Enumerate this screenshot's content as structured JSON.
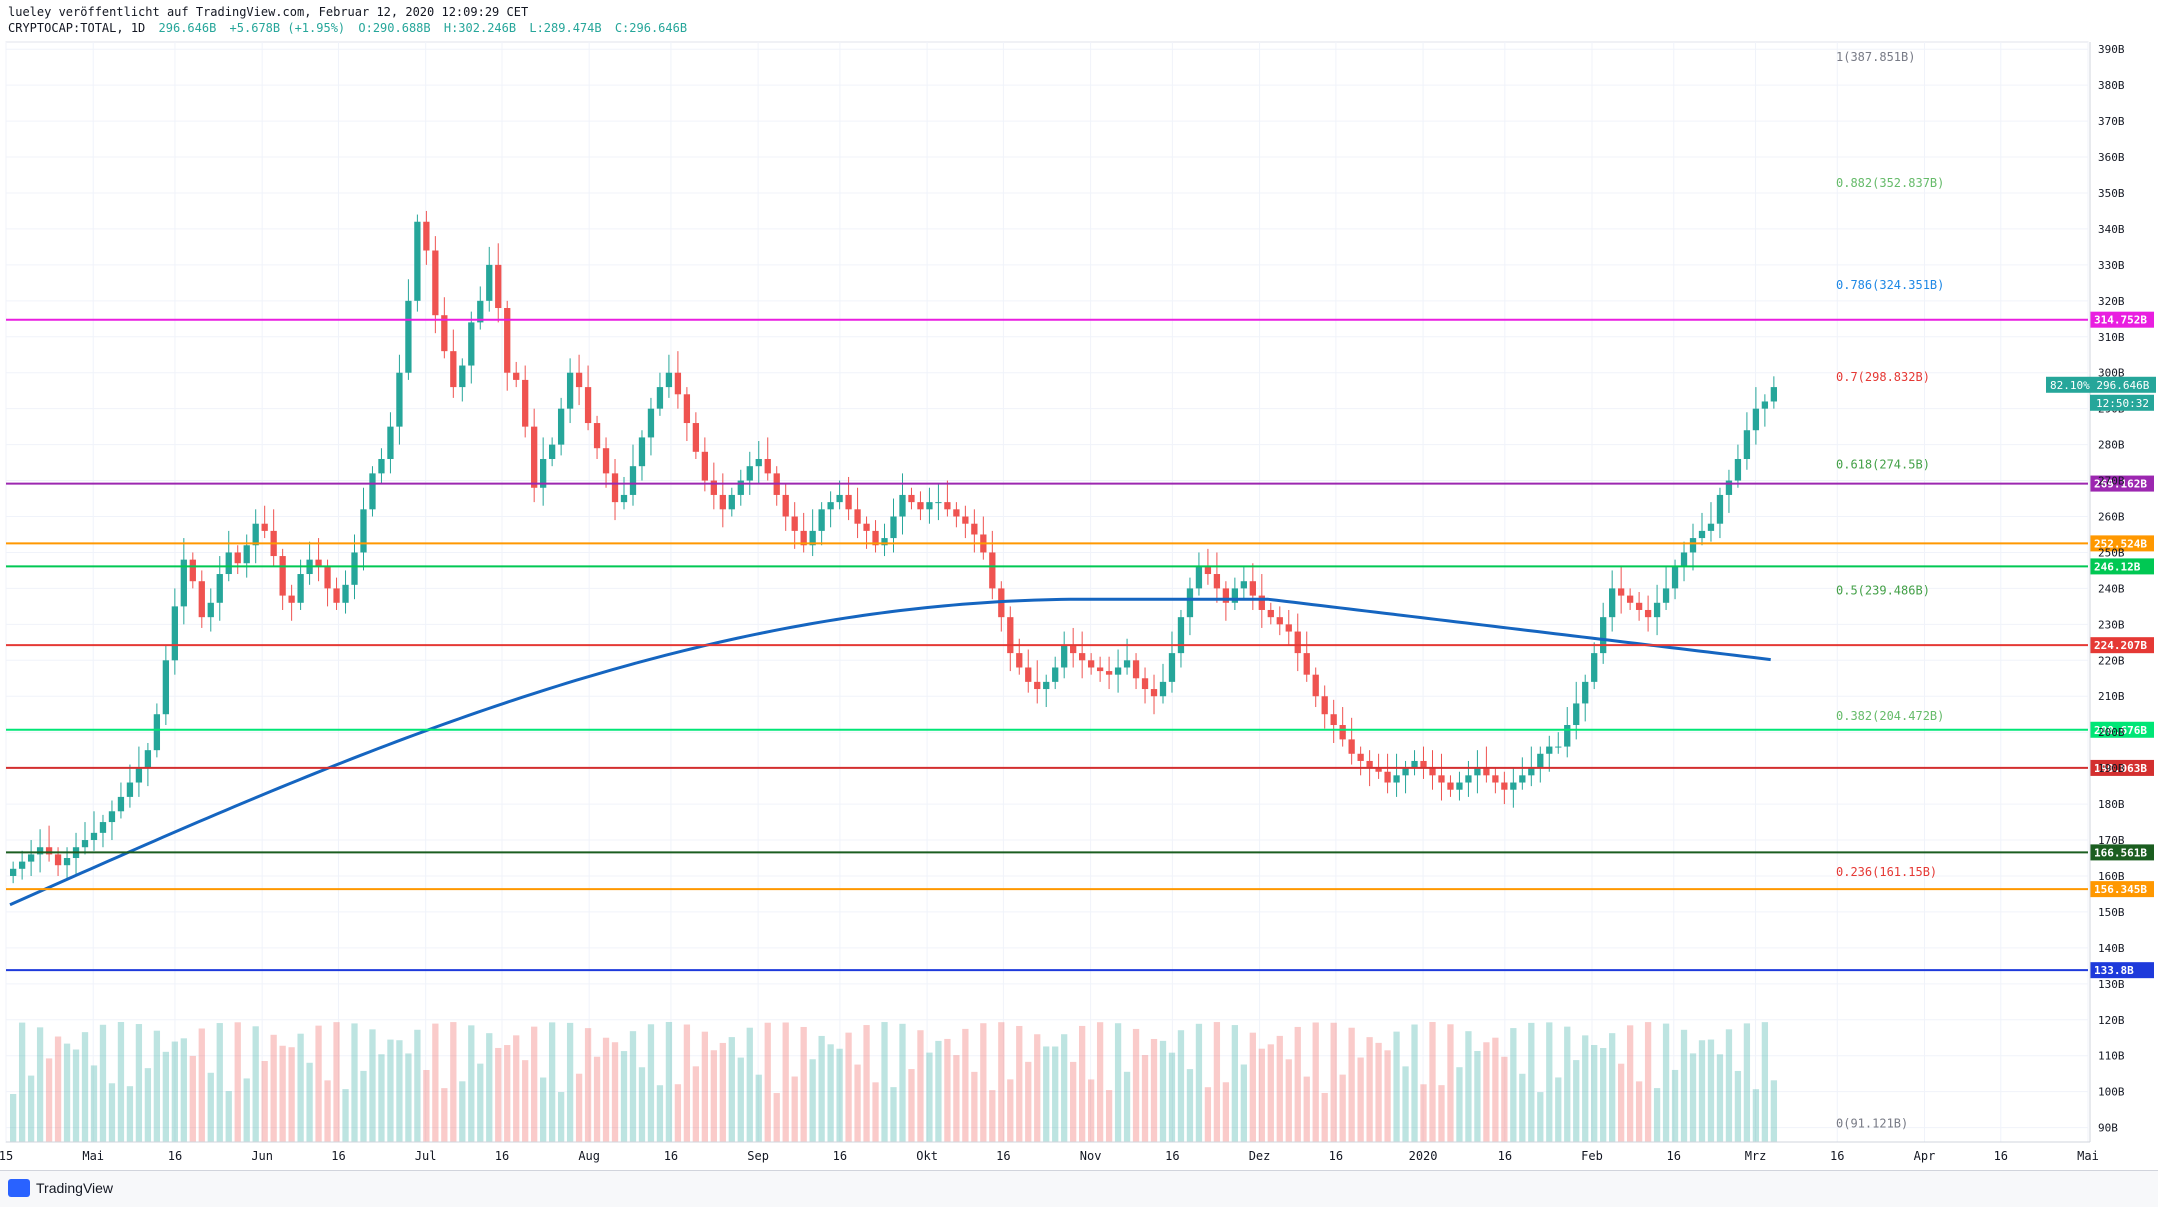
{
  "header": {
    "line1": "lueley veröffentlicht auf TradingView.com, Februar 12, 2020 12:09:29 CET",
    "symbol": "CRYPTOCAP:TOTAL, 1D",
    "last": "296.646B",
    "change": "+5.678B (+1.95%)",
    "open": "O:290.688B",
    "high": "H:302.246B",
    "low": "L:289.474B",
    "close": "C:296.646B"
  },
  "footer": {
    "brand": "TradingView"
  },
  "colors": {
    "up": "#26a69a",
    "down": "#ef5350",
    "bg": "#ffffff",
    "ma200": "#1565c0",
    "bb": "#5b9bb3"
  },
  "chart_data": {
    "type": "candlestick",
    "yunit": "B",
    "ylim": [
      86,
      392
    ],
    "price_ticks": [
      "390B",
      "380B",
      "370B",
      "360B",
      "350B",
      "340B",
      "330B",
      "320B",
      "310B",
      "300B",
      "290B",
      "280B",
      "270B",
      "260B",
      "250B",
      "240B",
      "230B",
      "220B",
      "210B",
      "200B",
      "190B",
      "180B",
      "170B",
      "160B",
      "150B",
      "140B",
      "130B",
      "120B",
      "110B",
      "100B",
      "90B"
    ],
    "price_tick_values": [
      390,
      380,
      370,
      360,
      350,
      340,
      330,
      320,
      310,
      300,
      290,
      280,
      270,
      260,
      250,
      240,
      230,
      220,
      210,
      200,
      190,
      180,
      170,
      160,
      150,
      140,
      130,
      120,
      110,
      100,
      90
    ],
    "x_labels": [
      "15",
      "Mai",
      "16",
      "Jun",
      "16",
      "Jul",
      "16",
      "Aug",
      "16",
      "Sep",
      "16",
      "Okt",
      "16",
      "Nov",
      "16",
      "Dez",
      "16",
      "2020",
      "16",
      "Feb",
      "16",
      "Mrz",
      "16",
      "Apr",
      "16",
      "Mai"
    ],
    "x_label_days": [
      0,
      16,
      31,
      47,
      61,
      77,
      91,
      107,
      122,
      138,
      153,
      169,
      183,
      199,
      214,
      230,
      244,
      260,
      275,
      291,
      306,
      321,
      336,
      352,
      366,
      382
    ],
    "closes": [
      162,
      164,
      166,
      168,
      166,
      163,
      165,
      168,
      170,
      172,
      175,
      178,
      182,
      186,
      190,
      195,
      205,
      220,
      235,
      248,
      242,
      232,
      236,
      244,
      250,
      247,
      252,
      258,
      256,
      249,
      238,
      236,
      244,
      248,
      246,
      240,
      236,
      241,
      250,
      262,
      272,
      276,
      285,
      300,
      320,
      342,
      334,
      316,
      306,
      296,
      302,
      314,
      320,
      330,
      318,
      300,
      298,
      285,
      268,
      276,
      280,
      290,
      300,
      296,
      286,
      279,
      272,
      264,
      266,
      274,
      282,
      290,
      296,
      300,
      294,
      286,
      278,
      270,
      266,
      262,
      266,
      270,
      274,
      276,
      272,
      266,
      260,
      256,
      252,
      256,
      262,
      264,
      266,
      262,
      258,
      256,
      252,
      254,
      260,
      266,
      264,
      262,
      264,
      264,
      262,
      260,
      258,
      255,
      250,
      240,
      232,
      222,
      218,
      214,
      212,
      214,
      218,
      224,
      222,
      220,
      218,
      217,
      216,
      218,
      220,
      215,
      212,
      210,
      214,
      222,
      232,
      240,
      246,
      244,
      240,
      236,
      240,
      242,
      238,
      234,
      232,
      230,
      228,
      222,
      216,
      210,
      205,
      202,
      198,
      194,
      192,
      190,
      189,
      186,
      188,
      190,
      192,
      190,
      188,
      186,
      184,
      186,
      188,
      190,
      188,
      186,
      184,
      186,
      188,
      190,
      194,
      196,
      196,
      202,
      208,
      214,
      222,
      232,
      240,
      238,
      236,
      234,
      232,
      236,
      240,
      246,
      250,
      254,
      256,
      258,
      266,
      270,
      276,
      284,
      290,
      292,
      296
    ],
    "levels": [
      {
        "label": "314.752B",
        "value": 314.752,
        "color": "#e91ee0"
      },
      {
        "label": "269.162B",
        "value": 269.162,
        "color": "#9c27b0"
      },
      {
        "label": "252.524B",
        "value": 252.524,
        "color": "#ff9800"
      },
      {
        "label": "246.12B",
        "value": 246.12,
        "color": "#00c853"
      },
      {
        "label": "224.207B",
        "value": 224.207,
        "color": "#e53935"
      },
      {
        "label": "200.676B",
        "value": 200.676,
        "color": "#00e676"
      },
      {
        "label": "190.063B",
        "value": 190.063,
        "color": "#d32f2f"
      },
      {
        "label": "166.561B",
        "value": 166.561,
        "color": "#1b5e20"
      },
      {
        "label": "156.345B",
        "value": 156.345,
        "color": "#ff9800"
      },
      {
        "label": "133.8B",
        "value": 133.8,
        "color": "#1e3adb"
      }
    ],
    "fib": [
      {
        "label": "1(387.851B)",
        "value": 387.851,
        "color": "#787b86"
      },
      {
        "label": "0.882(352.837B)",
        "value": 352.837,
        "color": "#66bb6a"
      },
      {
        "label": "0.786(324.351B)",
        "value": 324.351,
        "color": "#1e88e5"
      },
      {
        "label": "0.7(298.832B)",
        "value": 298.832,
        "color": "#e53935"
      },
      {
        "label": "0.618(274.5B)",
        "value": 274.5,
        "color": "#43a047"
      },
      {
        "label": "0.5(239.486B)",
        "value": 239.486,
        "color": "#43a047"
      },
      {
        "label": "0.382(204.472B)",
        "value": 204.472,
        "color": "#66bb6a"
      },
      {
        "label": "0.236(161.15B)",
        "value": 161.15,
        "color": "#e53935"
      },
      {
        "label": "0(91.121B)",
        "value": 91.121,
        "color": "#787b86"
      }
    ],
    "last_price": {
      "label": "296.646B",
      "value": 296.646,
      "pct": "82.10%",
      "countdown": "12:50:32"
    }
  }
}
